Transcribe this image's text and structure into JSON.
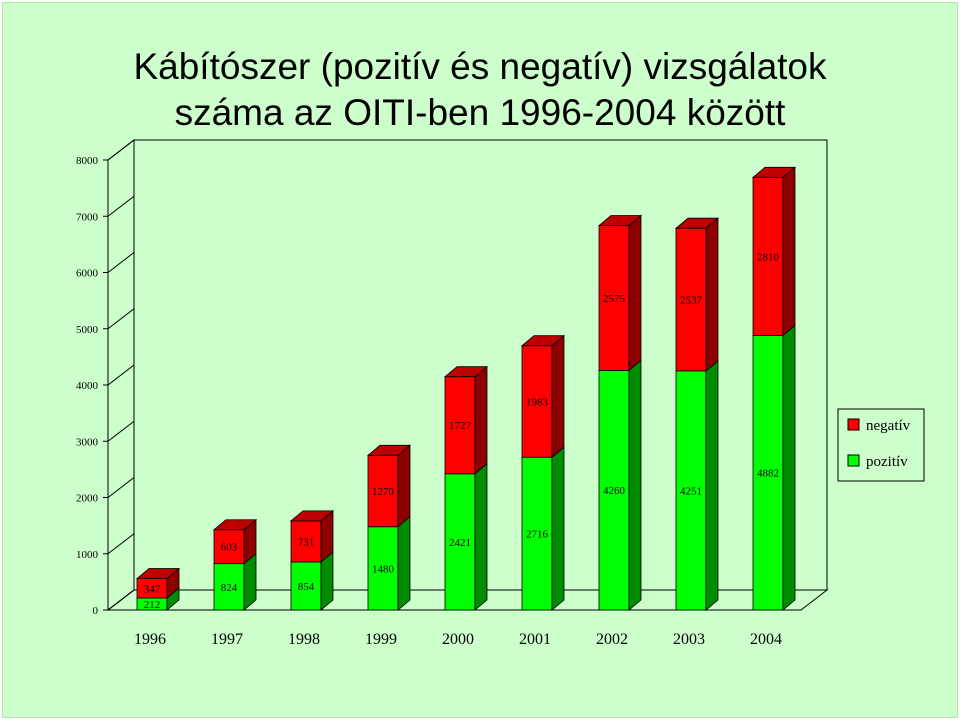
{
  "slide": {
    "title_line1": "Kábítószer (pozitív és negatív) vizsgálatok",
    "title_line2": "száma az OITI-ben 1996-2004 között"
  },
  "chart_data": {
    "type": "bar",
    "stacked": true,
    "three_d": true,
    "categories": [
      "1996",
      "1997",
      "1998",
      "1999",
      "2000",
      "2001",
      "2002",
      "2003",
      "2004"
    ],
    "series": [
      {
        "name": "pozitív",
        "color": "#00ff00",
        "values": [
          212,
          824,
          854,
          1480,
          2421,
          2716,
          4260,
          4251,
          4882
        ]
      },
      {
        "name": "negatív",
        "color": "#ff0000",
        "values": [
          347,
          603,
          731,
          1270,
          1727,
          1983,
          2575,
          2537,
          2810
        ]
      }
    ],
    "ylim": [
      0,
      8000
    ],
    "yticks": [
      "0",
      "1000",
      "2000",
      "3000",
      "4000",
      "5000",
      "6000",
      "7000",
      "8000"
    ],
    "grid": false,
    "legend_position": "right",
    "data_labels": true
  }
}
